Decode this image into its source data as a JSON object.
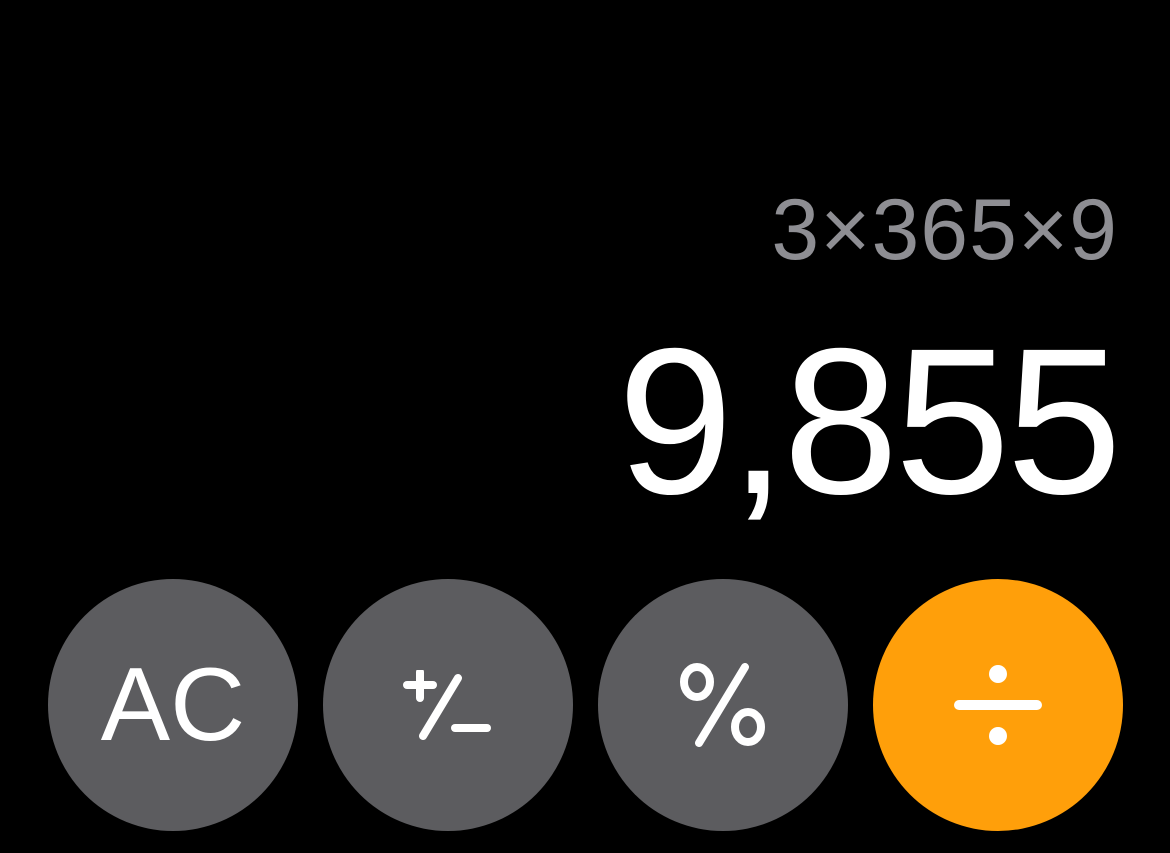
{
  "display": {
    "expression": "3×365×9",
    "result": "9,855"
  },
  "keys": {
    "ac_label": "AC",
    "plus_minus_icon": "plus-minus-icon",
    "percent_icon": "percent-icon",
    "divide_icon": "divide-icon"
  },
  "colors": {
    "background": "#000000",
    "function_key": "#5c5c5f",
    "operator_key": "#ff9f0a",
    "expression_text": "#8e8e93",
    "result_text": "#ffffff"
  }
}
